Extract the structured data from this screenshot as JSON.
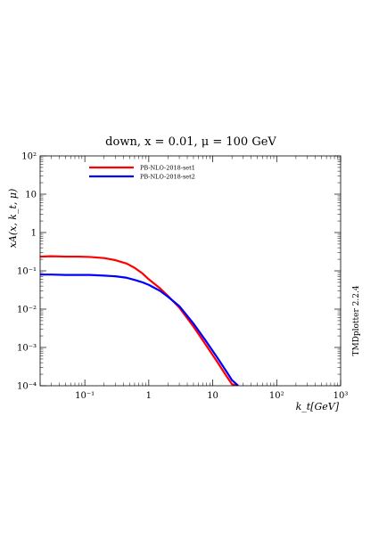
{
  "chart_data": {
    "type": "line",
    "title": "down, x = 0.01, μ = 100 GeV",
    "xlabel": "k_t[GeV]",
    "ylabel": "xA(x, k_t, μ)",
    "xscale": "log",
    "yscale": "log",
    "xlim": [
      0.02,
      1000
    ],
    "ylim": [
      0.0001,
      100
    ],
    "x_ticks": [
      "10⁻¹",
      "1",
      "10",
      "10²",
      "10³"
    ],
    "y_ticks": [
      "10⁻⁴",
      "10⁻³",
      "10⁻²",
      "10⁻¹",
      "1",
      "10",
      "10²"
    ],
    "legend_position": "top-left",
    "side_label": "TMDplotter 2.2.4",
    "series": [
      {
        "name": "PB-NLO-2018-set1",
        "color": "#ff0000",
        "x": [
          0.02,
          0.03,
          0.05,
          0.08,
          0.12,
          0.2,
          0.3,
          0.45,
          0.6,
          0.8,
          1.0,
          1.5,
          2.0,
          3.0,
          5.0,
          8.0,
          12.0,
          16.0,
          20.0,
          24.0
        ],
        "y": [
          0.235,
          0.24,
          0.235,
          0.235,
          0.23,
          0.215,
          0.19,
          0.155,
          0.12,
          0.085,
          0.06,
          0.035,
          0.022,
          0.011,
          0.0035,
          0.0011,
          0.0004,
          0.00019,
          0.00011,
          0.0001
        ]
      },
      {
        "name": "PB-NLO-2018-set2",
        "color": "#0000ff",
        "x": [
          0.02,
          0.03,
          0.05,
          0.08,
          0.12,
          0.2,
          0.3,
          0.45,
          0.6,
          0.8,
          1.0,
          1.5,
          2.0,
          3.0,
          5.0,
          8.0,
          12.0,
          16.0,
          20.0,
          25.0
        ],
        "y": [
          0.08,
          0.08,
          0.078,
          0.078,
          0.078,
          0.075,
          0.072,
          0.066,
          0.058,
          0.05,
          0.043,
          0.03,
          0.021,
          0.012,
          0.0042,
          0.0014,
          0.00052,
          0.00025,
          0.00014,
          0.0001
        ]
      }
    ]
  }
}
